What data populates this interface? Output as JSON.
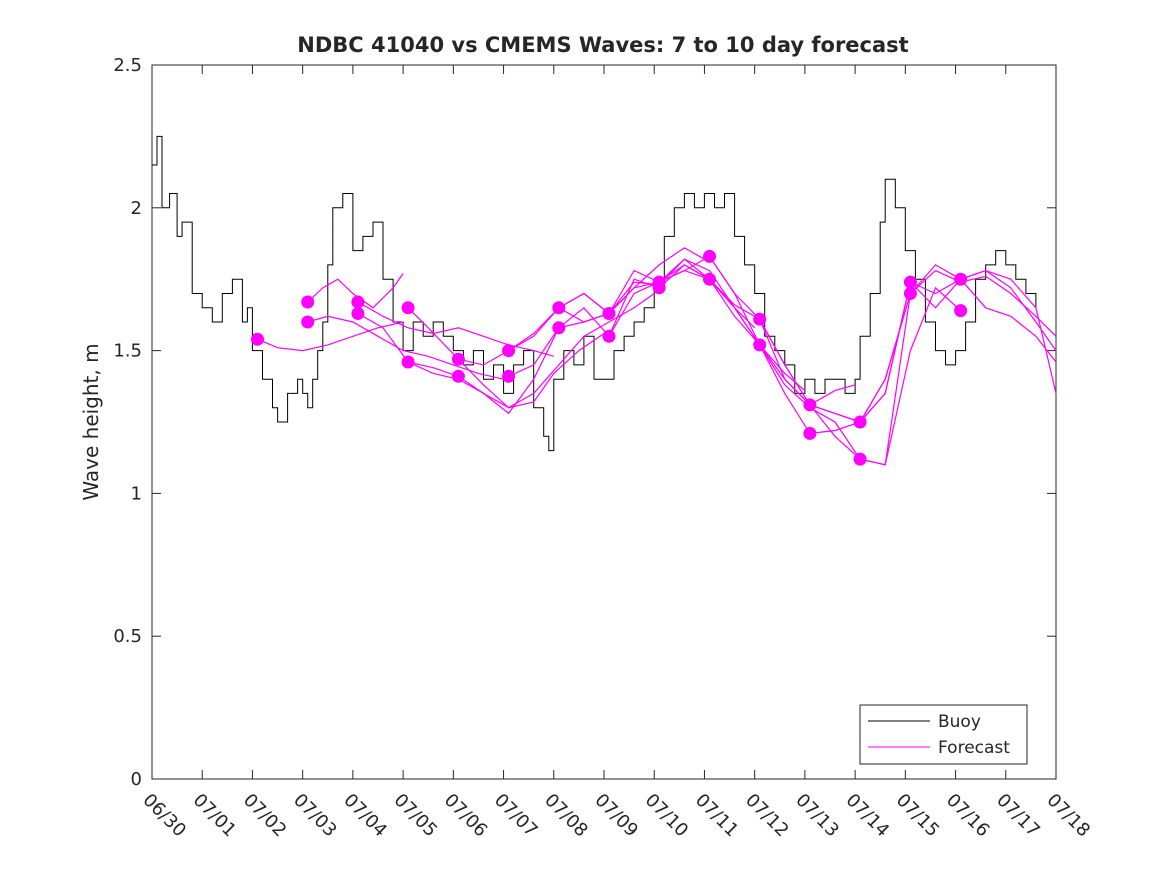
{
  "chart_data": {
    "type": "line",
    "title": "NDBC 41040 vs CMEMS Waves: 7 to 10 day forecast",
    "ylabel": "Wave height, m",
    "xlabel": "",
    "ylim": [
      0,
      2.5
    ],
    "xlim": [
      "06/30",
      "07/18"
    ],
    "yticks": [
      "0",
      "0.5",
      "1",
      "1.5",
      "2",
      "2.5"
    ],
    "xticks": [
      "06/30",
      "07/01",
      "07/02",
      "07/03",
      "07/04",
      "07/05",
      "07/06",
      "07/07",
      "07/08",
      "07/09",
      "07/10",
      "07/11",
      "07/12",
      "07/13",
      "07/14",
      "07/15",
      "07/16",
      "07/17",
      "07/18"
    ],
    "grid": false,
    "legend_position": "bottom-right",
    "legend": {
      "buoy": "Buoy",
      "forecast": "Forecast"
    },
    "colors": {
      "buoy": "#000000",
      "forecast": "#ff00ff",
      "axis": "#262626"
    },
    "buoy": {
      "name": "Buoy",
      "x": [
        0,
        0.1,
        0.2,
        0.35,
        0.5,
        0.6,
        0.8,
        1.0,
        1.2,
        1.4,
        1.6,
        1.8,
        1.9,
        2.0,
        2.2,
        2.4,
        2.5,
        2.7,
        2.9,
        3.0,
        3.1,
        3.2,
        3.3,
        3.4,
        3.5,
        3.6,
        3.8,
        4.0,
        4.2,
        4.4,
        4.6,
        4.8,
        5.0,
        5.2,
        5.4,
        5.6,
        5.8,
        6.0,
        6.2,
        6.4,
        6.6,
        6.8,
        7.0,
        7.2,
        7.4,
        7.6,
        7.8,
        7.9,
        8.0,
        8.2,
        8.4,
        8.6,
        8.8,
        9.0,
        9.2,
        9.4,
        9.6,
        9.8,
        10.0,
        10.2,
        10.4,
        10.6,
        10.8,
        11.0,
        11.2,
        11.4,
        11.6,
        11.8,
        12.0,
        12.2,
        12.4,
        12.6,
        12.8,
        13.0,
        13.2,
        13.4,
        13.6,
        13.8,
        14.0,
        14.1,
        14.3,
        14.5,
        14.6,
        14.8,
        15.0,
        15.2,
        15.4,
        15.6,
        15.8,
        16.0,
        16.2,
        16.4,
        16.6,
        16.8,
        17.0,
        17.2,
        17.4,
        17.6
      ],
      "y": [
        2.15,
        2.25,
        2.0,
        2.05,
        1.9,
        1.95,
        1.7,
        1.65,
        1.6,
        1.7,
        1.75,
        1.6,
        1.65,
        1.5,
        1.4,
        1.3,
        1.25,
        1.35,
        1.4,
        1.35,
        1.3,
        1.4,
        1.5,
        1.6,
        1.8,
        2.0,
        2.05,
        1.85,
        1.9,
        1.95,
        1.75,
        1.6,
        1.5,
        1.6,
        1.55,
        1.6,
        1.55,
        1.5,
        1.45,
        1.5,
        1.4,
        1.45,
        1.35,
        1.45,
        1.5,
        1.3,
        1.2,
        1.15,
        1.4,
        1.5,
        1.45,
        1.55,
        1.4,
        1.4,
        1.5,
        1.55,
        1.6,
        1.65,
        1.75,
        1.9,
        2.0,
        2.05,
        2.0,
        2.05,
        2.0,
        2.05,
        1.9,
        1.8,
        1.7,
        1.55,
        1.5,
        1.45,
        1.35,
        1.4,
        1.35,
        1.4,
        1.4,
        1.35,
        1.4,
        1.55,
        1.7,
        1.95,
        2.1,
        2.0,
        1.85,
        1.75,
        1.6,
        1.5,
        1.45,
        1.5,
        1.6,
        1.75,
        1.8,
        1.85,
        1.8,
        1.75,
        1.7,
        1.65
      ]
    },
    "forecast_runs": [
      {
        "name": "Forecast",
        "x": [
          2.1,
          2.5,
          3.0,
          3.5,
          4.0,
          4.5,
          5.0
        ],
        "y": [
          1.54,
          1.51,
          1.5,
          1.52,
          1.55,
          1.58,
          1.6
        ]
      },
      {
        "name": "Forecast",
        "x": [
          3.1,
          3.4,
          3.7,
          4.0,
          4.4,
          4.8,
          5.0
        ],
        "y": [
          1.67,
          1.72,
          1.75,
          1.7,
          1.65,
          1.72,
          1.77
        ]
      },
      {
        "name": "Forecast",
        "x": [
          3.1,
          3.5,
          4.0,
          4.5,
          5.0,
          5.5,
          6.0,
          6.5,
          7.0
        ],
        "y": [
          1.6,
          1.62,
          1.6,
          1.55,
          1.5,
          1.48,
          1.45,
          1.42,
          1.4
        ]
      },
      {
        "name": "Forecast",
        "x": [
          4.1,
          4.6,
          5.1,
          5.6,
          6.1,
          6.6,
          7.1,
          7.6,
          8.0
        ],
        "y": [
          1.67,
          1.62,
          1.58,
          1.56,
          1.58,
          1.55,
          1.52,
          1.5,
          1.48
        ]
      },
      {
        "name": "Forecast",
        "x": [
          4.1,
          4.6,
          5.1,
          5.6,
          6.1,
          6.6,
          7.1,
          7.6,
          8.0,
          8.5,
          9.0
        ],
        "y": [
          1.63,
          1.58,
          1.46,
          1.42,
          1.4,
          1.35,
          1.3,
          1.32,
          1.42,
          1.5,
          1.56
        ]
      },
      {
        "name": "Forecast",
        "x": [
          5.1,
          5.5,
          6.1,
          6.6,
          7.1,
          7.6,
          8.1,
          8.6,
          9.1,
          9.6,
          10.0
        ],
        "y": [
          1.65,
          1.58,
          1.47,
          1.38,
          1.3,
          1.35,
          1.45,
          1.55,
          1.6,
          1.65,
          1.7
        ]
      },
      {
        "name": "Forecast",
        "x": [
          5.1,
          5.6,
          6.1,
          6.6,
          7.1,
          7.6,
          8.1,
          8.6,
          9.1,
          9.6,
          10.1,
          10.6,
          11.0
        ],
        "y": [
          1.46,
          1.44,
          1.41,
          1.35,
          1.28,
          1.4,
          1.58,
          1.6,
          1.63,
          1.72,
          1.8,
          1.86,
          1.82
        ]
      },
      {
        "name": "Forecast",
        "x": [
          6.1,
          6.6,
          7.1,
          7.6,
          8.1,
          8.6,
          9.1,
          9.6,
          10.1,
          10.6,
          11.1,
          11.6,
          12.0
        ],
        "y": [
          1.47,
          1.45,
          1.5,
          1.56,
          1.65,
          1.7,
          1.63,
          1.72,
          1.74,
          1.82,
          1.78,
          1.65,
          1.58
        ]
      },
      {
        "name": "Forecast",
        "x": [
          7.1,
          7.6,
          8.1,
          8.6,
          9.1,
          9.6,
          10.1,
          10.6,
          11.1,
          11.6,
          12.1,
          12.6,
          13.0
        ],
        "y": [
          1.41,
          1.45,
          1.58,
          1.65,
          1.55,
          1.75,
          1.72,
          1.8,
          1.75,
          1.62,
          1.52,
          1.42,
          1.36
        ]
      },
      {
        "name": "Forecast",
        "x": [
          7.1,
          7.6,
          8.1,
          8.6,
          9.1,
          9.6,
          10.1,
          10.6,
          11.1,
          11.6,
          12.1,
          12.6,
          13.1,
          13.6,
          14.0
        ],
        "y": [
          1.5,
          1.55,
          1.65,
          1.7,
          1.63,
          1.78,
          1.74,
          1.78,
          1.83,
          1.7,
          1.61,
          1.45,
          1.31,
          1.36,
          1.38
        ]
      },
      {
        "name": "Forecast",
        "x": [
          8.1,
          8.6,
          9.1,
          9.6,
          10.1,
          10.6,
          11.1,
          11.6,
          12.1,
          12.6,
          13.1,
          13.6,
          14.1,
          14.6,
          15.1
        ],
        "y": [
          1.65,
          1.6,
          1.63,
          1.74,
          1.73,
          1.82,
          1.75,
          1.65,
          1.52,
          1.35,
          1.21,
          1.22,
          1.25,
          1.4,
          1.7
        ]
      },
      {
        "name": "Forecast",
        "x": [
          9.1,
          9.6,
          10.1,
          10.6,
          11.1,
          11.6,
          12.1,
          12.6,
          13.1,
          13.6,
          14.1,
          14.6,
          15.1,
          15.6,
          16.1
        ],
        "y": [
          1.55,
          1.7,
          1.74,
          1.8,
          1.75,
          1.66,
          1.61,
          1.4,
          1.31,
          1.2,
          1.12,
          1.1,
          1.5,
          1.72,
          1.64
        ]
      },
      {
        "name": "Forecast",
        "x": [
          10.1,
          10.6,
          11.1,
          11.6,
          12.1,
          12.6,
          13.1,
          13.6,
          14.1,
          14.6,
          15.1,
          15.6,
          16.1,
          16.6,
          17.1,
          17.6,
          18.0
        ],
        "y": [
          1.74,
          1.78,
          1.75,
          1.65,
          1.52,
          1.38,
          1.3,
          1.25,
          1.12,
          1.1,
          1.7,
          1.78,
          1.74,
          1.76,
          1.7,
          1.62,
          1.55
        ]
      },
      {
        "name": "Forecast",
        "x": [
          11.1,
          11.6,
          12.1,
          12.6,
          13.1,
          13.6,
          14.1,
          14.6,
          15.1,
          15.6,
          16.1,
          16.6,
          17.1,
          17.6,
          18.0
        ],
        "y": [
          1.83,
          1.7,
          1.52,
          1.4,
          1.31,
          1.28,
          1.25,
          1.35,
          1.74,
          1.7,
          1.75,
          1.65,
          1.62,
          1.55,
          1.46
        ]
      },
      {
        "name": "Forecast",
        "x": [
          12.1,
          12.6,
          13.1,
          13.6,
          14.1,
          14.6,
          15.1,
          15.6,
          16.1,
          16.6,
          17.1,
          17.6,
          18.0
        ],
        "y": [
          1.61,
          1.45,
          1.31,
          1.28,
          1.25,
          1.4,
          1.7,
          1.8,
          1.75,
          1.78,
          1.72,
          1.6,
          1.5
        ]
      },
      {
        "name": "Forecast",
        "x": [
          14.1,
          14.6,
          15.1,
          15.6,
          16.1,
          16.6,
          17.1,
          17.6,
          18.0
        ],
        "y": [
          1.25,
          1.35,
          1.74,
          1.65,
          1.75,
          1.78,
          1.75,
          1.65,
          1.35
        ]
      }
    ],
    "markers": {
      "x": [
        2.1,
        3.1,
        3.1,
        4.1,
        4.1,
        5.1,
        5.1,
        6.1,
        6.1,
        7.1,
        7.1,
        8.1,
        8.1,
        9.1,
        9.1,
        10.1,
        10.1,
        11.1,
        11.1,
        12.1,
        12.1,
        13.1,
        13.1,
        14.1,
        14.1,
        15.1,
        15.1,
        16.1,
        16.1
      ],
      "y": [
        1.54,
        1.67,
        1.6,
        1.67,
        1.63,
        1.65,
        1.46,
        1.47,
        1.41,
        1.5,
        1.41,
        1.65,
        1.58,
        1.63,
        1.55,
        1.74,
        1.72,
        1.83,
        1.75,
        1.61,
        1.52,
        1.31,
        1.21,
        1.25,
        1.12,
        1.74,
        1.7,
        1.75,
        1.64
      ]
    }
  }
}
